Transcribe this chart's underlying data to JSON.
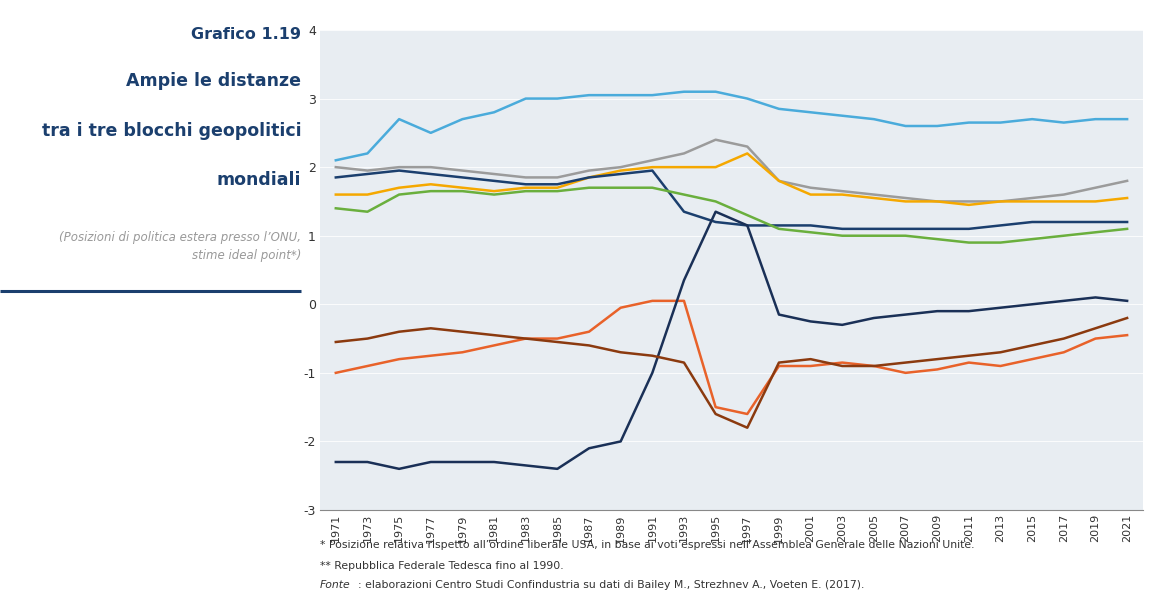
{
  "title_line1": "Grafico 1.19",
  "title_line2": "Ampie le distanze",
  "title_line3": "tra i tre blocchi geopolitici",
  "title_line4": "mondiali",
  "subtitle": "(Posizioni di politica estera presso l’ONU,\nstime ideal point*)",
  "footnote1": "* Posizione relativa rispetto all’ordine liberale USA, in base ai voti espressi nell’Assemblea Generale delle Nazioni Unite.",
  "footnote2": "** Repubblica Federale Tedesca fino al 1990.",
  "footnote3": "Fonte: elaborazioni Centro Studi Confindustria su dati di Bailey M., Strezhnev A., Voeten E. (2017).",
  "years": [
    1971,
    1973,
    1975,
    1977,
    1979,
    1981,
    1983,
    1985,
    1987,
    1989,
    1991,
    1993,
    1995,
    1997,
    1999,
    2001,
    2003,
    2005,
    2007,
    2009,
    2011,
    2013,
    2015,
    2017,
    2019,
    2021
  ],
  "series": {
    "Stati Uniti": [
      2.1,
      2.2,
      2.7,
      2.5,
      2.7,
      2.8,
      3.0,
      3.0,
      3.05,
      3.05,
      3.05,
      3.1,
      3.1,
      3.0,
      2.85,
      2.8,
      2.75,
      2.7,
      2.6,
      2.6,
      2.65,
      2.65,
      2.7,
      2.65,
      2.7,
      2.7
    ],
    "Cina": [
      -1.0,
      -0.9,
      -0.8,
      -0.75,
      -0.7,
      -0.6,
      -0.5,
      -0.5,
      -0.4,
      -0.05,
      0.05,
      0.05,
      -1.5,
      -1.6,
      -0.9,
      -0.9,
      -0.85,
      -0.9,
      -1.0,
      -0.95,
      -0.85,
      -0.9,
      -0.8,
      -0.7,
      -0.5,
      -0.45
    ],
    "Regno Unito": [
      2.0,
      1.95,
      2.0,
      2.0,
      1.95,
      1.9,
      1.85,
      1.85,
      1.95,
      2.0,
      2.1,
      2.2,
      2.4,
      2.3,
      1.8,
      1.7,
      1.65,
      1.6,
      1.55,
      1.5,
      1.5,
      1.5,
      1.55,
      1.6,
      1.7,
      1.8
    ],
    "Francia": [
      1.6,
      1.6,
      1.7,
      1.75,
      1.7,
      1.65,
      1.7,
      1.7,
      1.85,
      1.95,
      2.0,
      2.0,
      2.0,
      2.2,
      1.8,
      1.6,
      1.6,
      1.55,
      1.5,
      1.5,
      1.45,
      1.5,
      1.5,
      1.5,
      1.5,
      1.55
    ],
    "Germania**": [
      1.85,
      1.9,
      1.95,
      1.9,
      1.85,
      1.8,
      1.75,
      1.75,
      1.85,
      1.9,
      1.95,
      1.35,
      1.2,
      1.15,
      1.15,
      1.15,
      1.1,
      1.1,
      1.1,
      1.1,
      1.1,
      1.15,
      1.2,
      1.2,
      1.2,
      1.2
    ],
    "Italia": [
      1.4,
      1.35,
      1.6,
      1.65,
      1.65,
      1.6,
      1.65,
      1.65,
      1.7,
      1.7,
      1.7,
      1.6,
      1.5,
      1.3,
      1.1,
      1.05,
      1.0,
      1.0,
      1.0,
      0.95,
      0.9,
      0.9,
      0.95,
      1.0,
      1.05,
      1.1
    ],
    "Russia": [
      -2.3,
      -2.3,
      -2.4,
      -2.3,
      -2.3,
      -2.3,
      -2.35,
      -2.4,
      -2.1,
      -2.0,
      -1.0,
      0.35,
      1.35,
      1.15,
      -0.15,
      -0.25,
      -0.3,
      -0.2,
      -0.15,
      -0.1,
      -0.1,
      -0.05,
      0.0,
      0.05,
      0.1,
      0.05
    ],
    "India": [
      -0.55,
      -0.5,
      -0.4,
      -0.35,
      -0.4,
      -0.45,
      -0.5,
      -0.55,
      -0.6,
      -0.7,
      -0.75,
      -0.85,
      -1.6,
      -1.8,
      -0.85,
      -0.8,
      -0.9,
      -0.9,
      -0.85,
      -0.8,
      -0.75,
      -0.7,
      -0.6,
      -0.5,
      -0.35,
      -0.2
    ]
  },
  "colors": {
    "Stati Uniti": "#4AABDB",
    "Cina": "#E8622A",
    "Regno Unito": "#9B9B9B",
    "Francia": "#F5A800",
    "Germania**": "#1B3F6E",
    "Italia": "#6AAF3D",
    "Russia": "#1A3057",
    "India": "#8B3A0F"
  },
  "bg_color": "#E8EDF2",
  "ylim": [
    -3.0,
    4.0
  ],
  "yticks": [
    -3,
    -2,
    -1,
    0,
    1,
    2,
    3,
    4
  ],
  "title_color": "#1B3F6E",
  "subtitle_color": "#999999",
  "footnote_color": "#333333",
  "separator_color": "#1B3F6E"
}
